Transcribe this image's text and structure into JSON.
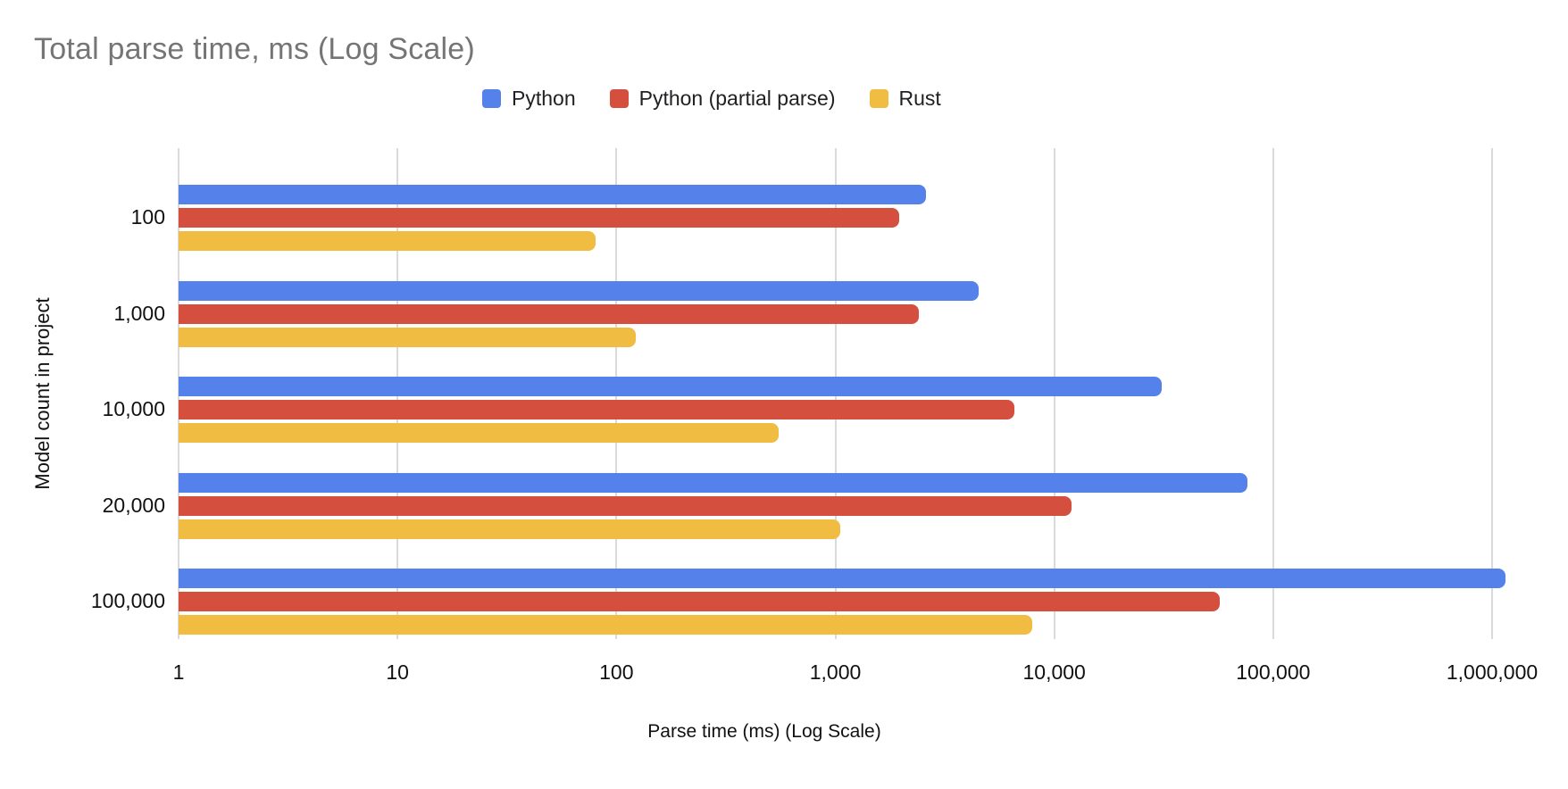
{
  "chart_data": {
    "type": "bar",
    "orientation": "horizontal",
    "title": "Total parse time, ms (Log Scale)",
    "xlabel": "Parse time (ms) (Log Scale)",
    "ylabel": "Model count in project",
    "x_scale": "log",
    "xlim": [
      1,
      1000000
    ],
    "grid": true,
    "legend_position": "top",
    "categories": [
      "100",
      "1,000",
      "10,000",
      "20,000",
      "100,000"
    ],
    "x_ticks": [
      "1",
      "10",
      "100",
      "1,000",
      "10,000",
      "100,000",
      "1,000,000"
    ],
    "x_tick_values": [
      1,
      10,
      100,
      1000,
      10000,
      100000,
      1000000
    ],
    "series": [
      {
        "name": "Python",
        "color": "#5582EA",
        "values": [
          2600,
          4500,
          31000,
          76000,
          1150000
        ]
      },
      {
        "name": "Python (partial parse)",
        "color": "#D44F3E",
        "values": [
          1950,
          2400,
          6600,
          12000,
          57000
        ]
      },
      {
        "name": "Rust",
        "color": "#F0BC42",
        "values": [
          80,
          123,
          550,
          1050,
          7900
        ]
      }
    ]
  },
  "colors": {
    "title_text": "#757575",
    "axis_text": "#111111",
    "gridline": "#dadada",
    "background": "#ffffff"
  }
}
